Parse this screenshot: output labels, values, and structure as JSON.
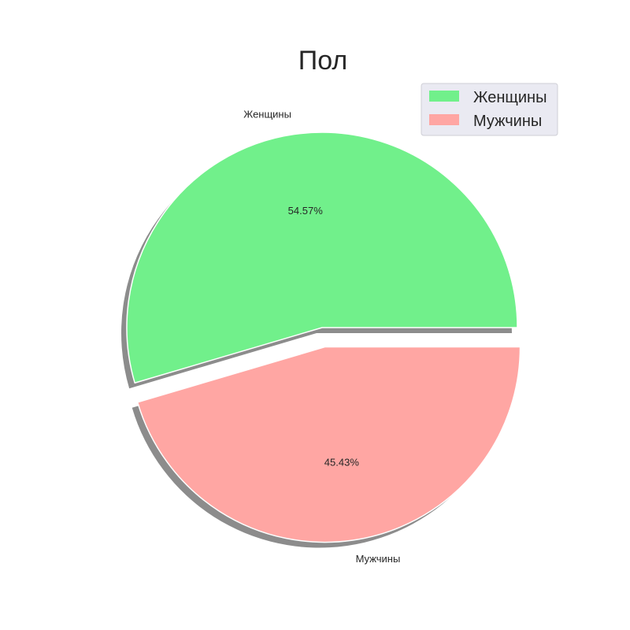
{
  "chart_data": {
    "type": "pie",
    "title": "Пол",
    "categories": [
      "Женщины",
      "Мужчины"
    ],
    "values": [
      54.57,
      45.43
    ],
    "value_labels": [
      "54.57%",
      "45.43%"
    ],
    "colors": [
      "#71f08b",
      "#ffa6a3"
    ],
    "explode": [
      0,
      0.1
    ],
    "shadow": true,
    "start_angle": 0,
    "legend": {
      "placement": "top-right",
      "entries": [
        "Женщины",
        "Мужчины"
      ]
    }
  }
}
